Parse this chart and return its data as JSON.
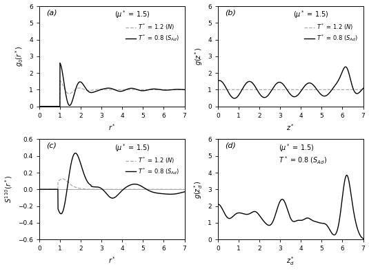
{
  "panels": [
    "(a)",
    "(b)",
    "(c)",
    "(d)"
  ],
  "xlim": [
    0,
    7
  ],
  "ylim_a": [
    0,
    6
  ],
  "ylim_b": [
    0,
    6
  ],
  "ylim_c": [
    -0.6,
    0.6
  ],
  "ylim_d": [
    0,
    6
  ],
  "ylabel_a": "$g_0(r^*)$",
  "ylabel_b": "$g(z^*)$",
  "ylabel_c": "$S^{110}(r^*)$",
  "ylabel_d": "$g(z_d^*)$",
  "xlabel_a": "$r^*$",
  "xlabel_b": "$z^*$",
  "xlabel_c": "$r^*$",
  "xlabel_d": "$z_d^*$",
  "yticks_a": [
    0,
    1,
    2,
    3,
    4,
    5,
    6
  ],
  "yticks_b": [
    0,
    1,
    2,
    3,
    4,
    5,
    6
  ],
  "yticks_c": [
    -0.6,
    -0.4,
    -0.2,
    0.0,
    0.2,
    0.4,
    0.6
  ],
  "yticks_d": [
    0,
    1,
    2,
    3,
    4,
    5,
    6
  ],
  "xticks": [
    0,
    1,
    2,
    3,
    4,
    5,
    6,
    7
  ],
  "color_solid": "#000000",
  "color_dashed": "#aaaaaa",
  "lw_solid": 1.0,
  "lw_dashed": 0.9,
  "mu_label": "($\\mu^*$ = 1.5)",
  "legend_N": "$T^*$ = 1.2 ($N$)",
  "legend_SAd": "$T^*$ = 0.8 ($S_{Ad}$)",
  "label_d_line2": "$T^*$ = 0.8 ($S_{Ad}$)"
}
